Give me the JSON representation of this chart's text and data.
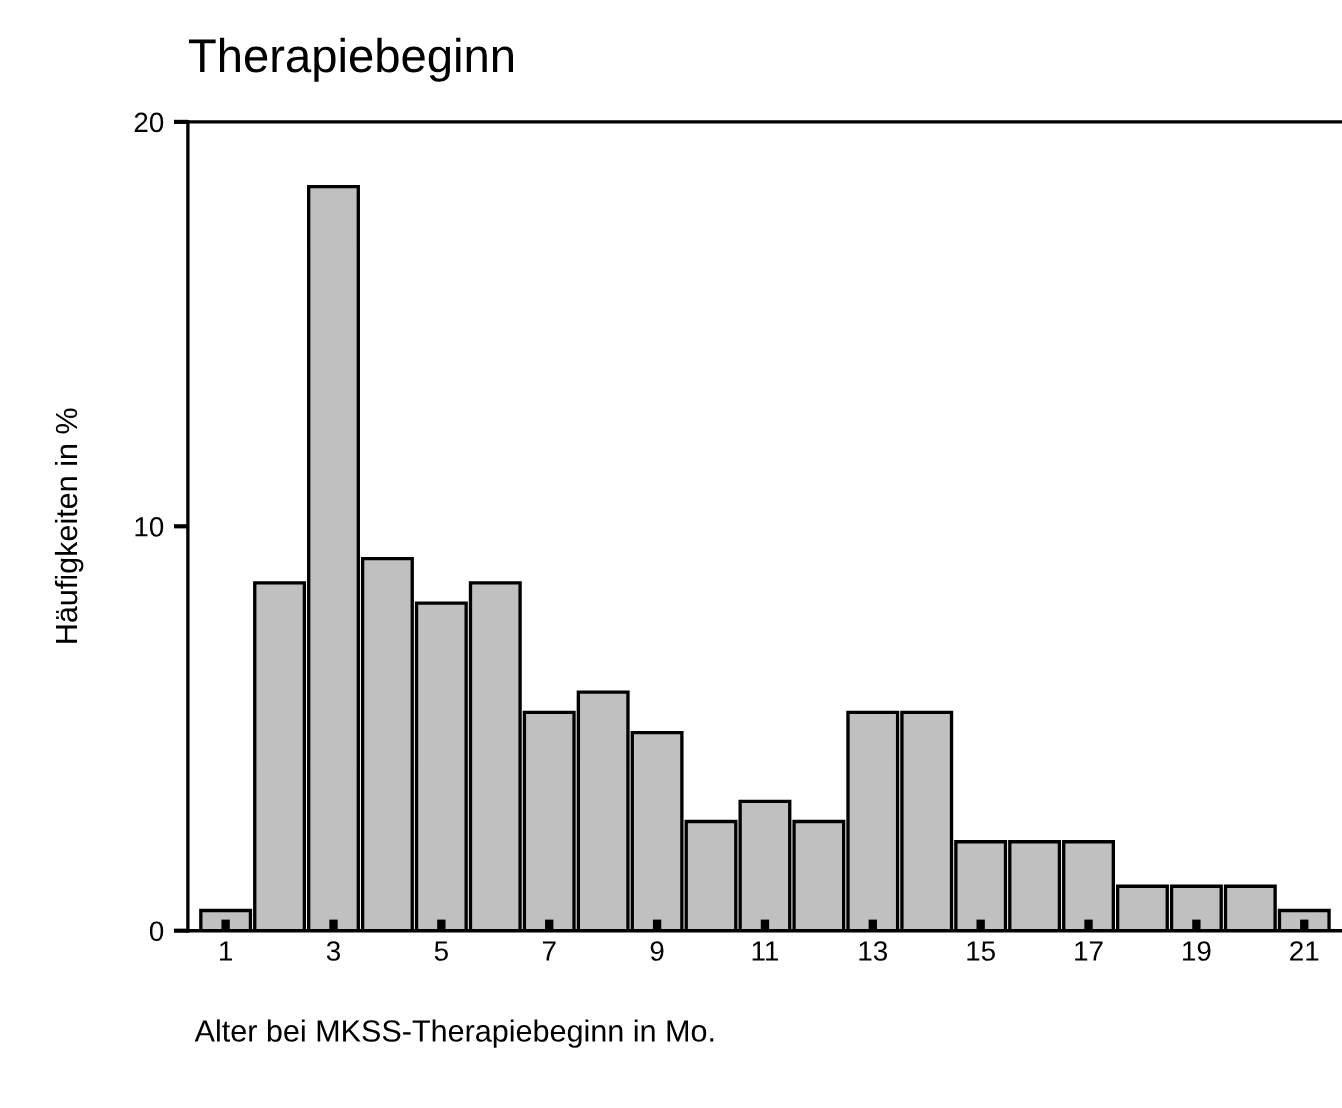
{
  "chart_data": {
    "type": "bar",
    "title": "Therapiebeginn",
    "xlabel": "Alter bei MKSS-Therapiebeginn in Mo.",
    "ylabel": "Häufigkeiten in %",
    "categories": [
      "1",
      null,
      "3",
      null,
      "5",
      null,
      "7",
      null,
      "9",
      null,
      "11",
      null,
      "13",
      null,
      "15",
      null,
      "17",
      null,
      "19",
      null,
      "21"
    ],
    "values": [
      0.5,
      8.6,
      18.4,
      9.2,
      8.1,
      8.6,
      5.4,
      5.9,
      4.9,
      2.7,
      3.2,
      2.7,
      5.4,
      5.4,
      2.2,
      2.2,
      2.2,
      1.1,
      1.1,
      1.1,
      0.5
    ],
    "color": "#c0c0c0",
    "ylim": [
      0,
      20
    ],
    "yticks": [
      0,
      10,
      20
    ],
    "grid": false,
    "legend": false
  }
}
